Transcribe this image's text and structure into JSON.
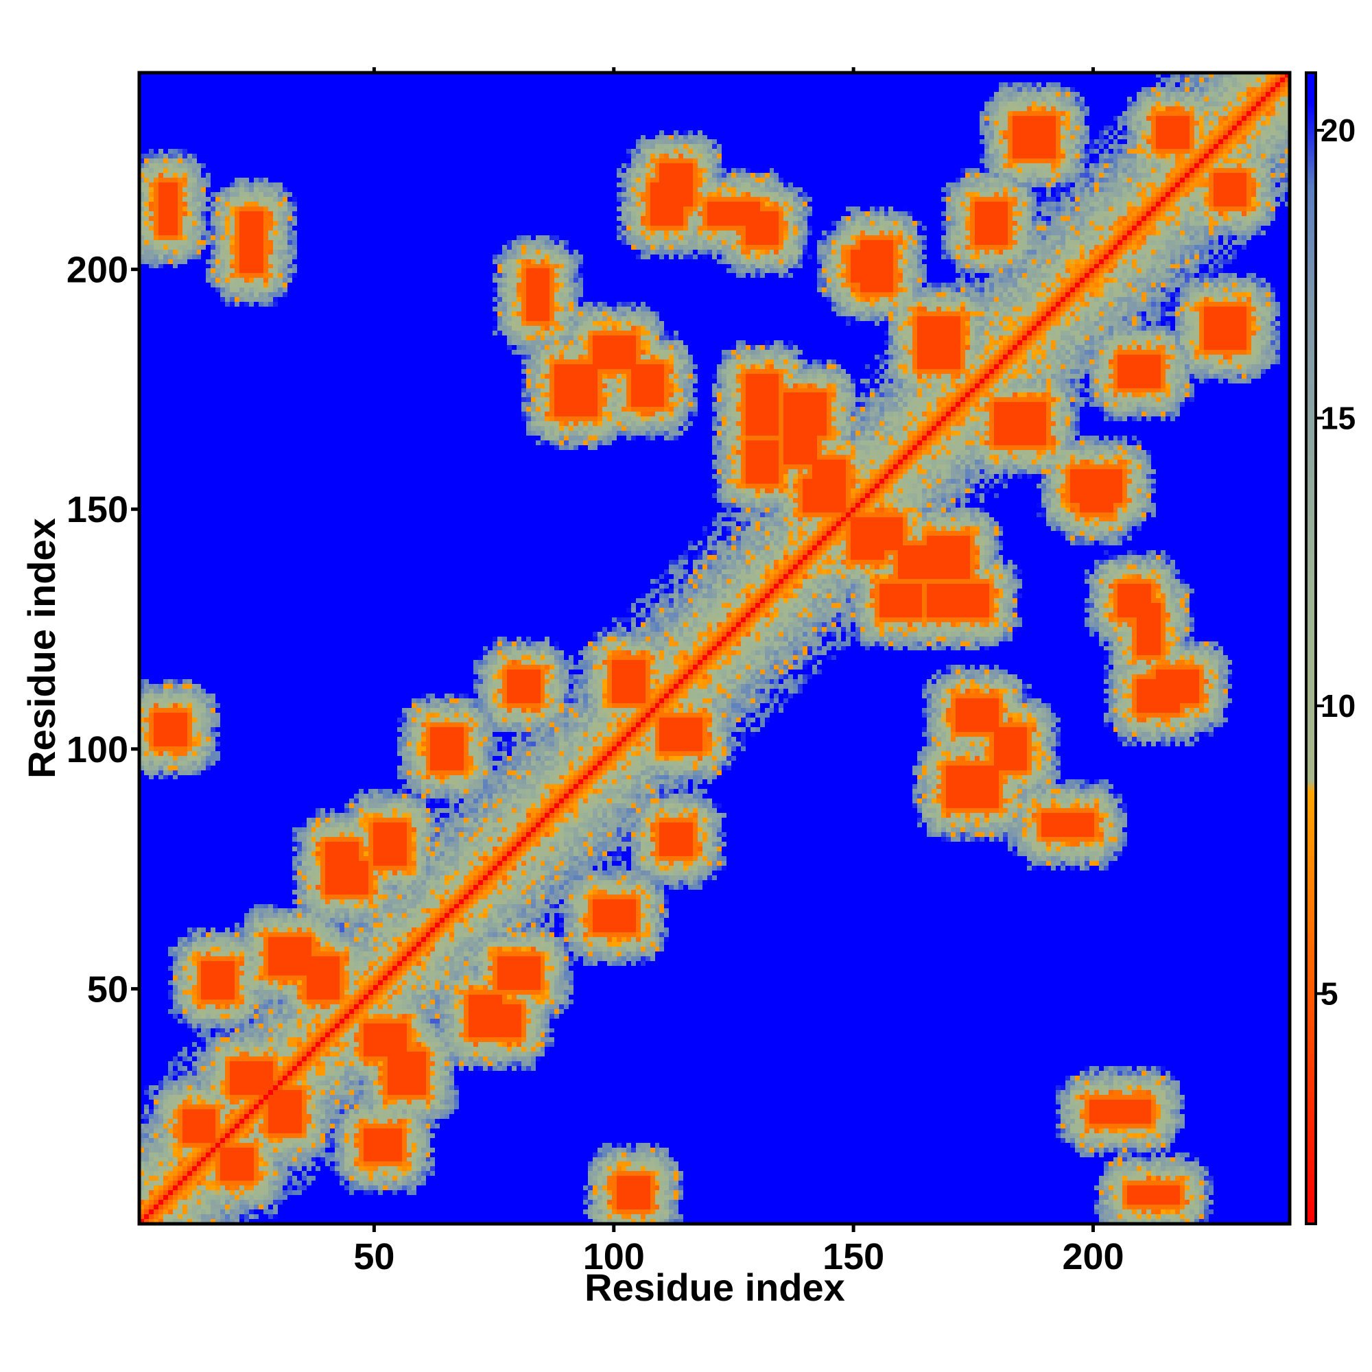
{
  "chart_data": {
    "type": "heatmap",
    "title": "",
    "xlabel": "Residue index",
    "ylabel": "Residue index",
    "n_residues": 241,
    "xlim": [
      1,
      241
    ],
    "ylim": [
      1,
      241
    ],
    "x_ticks": [
      50,
      100,
      150,
      200
    ],
    "y_ticks": [
      50,
      100,
      150,
      200
    ],
    "x_tick_labels": [
      "50",
      "100",
      "150",
      "200"
    ],
    "y_tick_labels": [
      "50",
      "100",
      "150",
      "200"
    ],
    "colorbar": {
      "range": [
        1,
        21
      ],
      "ticks": [
        5,
        10,
        15,
        20
      ],
      "tick_labels": [
        "5",
        "10",
        "15",
        "20"
      ],
      "colors": [
        {
          "value": 1,
          "color": "#ff0000"
        },
        {
          "value": 5,
          "color": "#ff5a00"
        },
        {
          "value": 8.5,
          "color": "#ffa500"
        },
        {
          "value": 8.7,
          "color": "#a9b78a"
        },
        {
          "value": 12,
          "color": "#9fb595"
        },
        {
          "value": 17,
          "color": "#7f98ac"
        },
        {
          "value": 19,
          "color": "#5a7fc0"
        },
        {
          "value": 20.5,
          "color": "#0000ff"
        }
      ],
      "saturation_color": "#0000ff"
    },
    "symmetric": true,
    "diagonal_value": 1,
    "contact_segments": [
      {
        "i": [
          4,
          10
        ],
        "j": [
          101,
          107
        ]
      },
      {
        "i": [
          5,
          8
        ],
        "j": [
          208,
          218
        ]
      },
      {
        "i": [
          10,
          16
        ],
        "j": [
          18,
          24
        ]
      },
      {
        "i": [
          14,
          20
        ],
        "j": [
          48,
          55
        ]
      },
      {
        "i": [
          20,
          28
        ],
        "j": [
          28,
          34
        ]
      },
      {
        "i": [
          22,
          26
        ],
        "j": [
          200,
          212
        ]
      },
      {
        "i": [
          28,
          36
        ],
        "j": [
          53,
          60
        ]
      },
      {
        "i": [
          36,
          42
        ],
        "j": [
          48,
          56
        ]
      },
      {
        "i": [
          40,
          46
        ],
        "j": [
          70,
          80
        ]
      },
      {
        "i": [
          50,
          56
        ],
        "j": [
          76,
          84
        ]
      },
      {
        "i": [
          62,
          68
        ],
        "j": [
          96,
          104
        ]
      },
      {
        "i": [
          70,
          76
        ],
        "j": [
          40,
          48
        ]
      },
      {
        "i": [
          78,
          84
        ],
        "j": [
          110,
          116
        ]
      },
      {
        "i": [
          82,
          86
        ],
        "j": [
          190,
          200
        ]
      },
      {
        "i": [
          88,
          96
        ],
        "j": [
          170,
          180
        ]
      },
      {
        "i": [
          100,
          106
        ],
        "j": [
          110,
          118
        ]
      },
      {
        "i": [
          104,
          110
        ],
        "j": [
          172,
          180
        ]
      },
      {
        "i": [
          110,
          116
        ],
        "j": [
          214,
          222
        ]
      },
      {
        "i": [
          120,
          130
        ],
        "j": [
          210,
          214
        ]
      },
      {
        "i": [
          128,
          134
        ],
        "j": [
          156,
          164
        ]
      },
      {
        "i": [
          128,
          134
        ],
        "j": [
          166,
          178
        ]
      },
      {
        "i": [
          136,
          144
        ],
        "j": [
          166,
          174
        ]
      },
      {
        "i": [
          140,
          148
        ],
        "j": [
          150,
          156
        ]
      },
      {
        "i": [
          150,
          160
        ],
        "j": [
          142,
          148
        ]
      },
      {
        "i": [
          152,
          158
        ],
        "j": [
          196,
          206
        ]
      },
      {
        "i": [
          160,
          170
        ],
        "j": [
          136,
          142
        ]
      },
      {
        "i": [
          164,
          172
        ],
        "j": [
          180,
          190
        ]
      },
      {
        "i": [
          176,
          182
        ],
        "j": [
          206,
          214
        ]
      },
      {
        "i": [
          180,
          186
        ],
        "j": [
          96,
          104
        ]
      },
      {
        "i": [
          184,
          192
        ],
        "j": [
          224,
          232
        ]
      },
      {
        "i": [
          198,
          204
        ],
        "j": [
          150,
          156
        ]
      },
      {
        "i": [
          206,
          212
        ],
        "j": [
          128,
          134
        ]
      },
      {
        "i": [
          210,
          218
        ],
        "j": [
          108,
          114
        ]
      },
      {
        "i": [
          214,
          220
        ],
        "j": [
          226,
          232
        ]
      }
    ]
  }
}
